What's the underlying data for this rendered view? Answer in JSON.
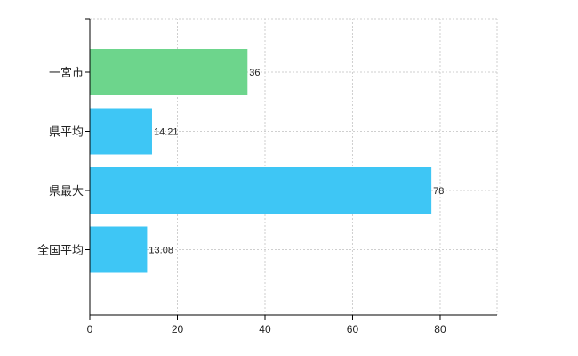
{
  "chart_data": {
    "type": "bar",
    "orientation": "horizontal",
    "categories": [
      "一宮市",
      "県平均",
      "県最大",
      "全国平均"
    ],
    "values": [
      36,
      14.21,
      78,
      13.08
    ],
    "value_labels": [
      "36",
      "14.21",
      "78",
      "13.08"
    ],
    "bar_colors": [
      "#6dd58c",
      "#3ec6f5",
      "#3ec6f5",
      "#3ec6f5"
    ],
    "xlim": [
      0,
      93
    ],
    "x_ticks": [
      0,
      20,
      40,
      60,
      80
    ],
    "x_tick_labels": [
      "0",
      "20",
      "40",
      "60",
      "80"
    ],
    "grid": true,
    "legend": "none"
  }
}
